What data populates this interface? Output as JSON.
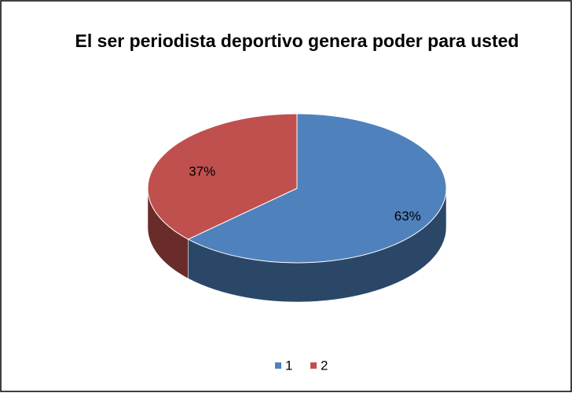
{
  "chart_data": {
    "type": "pie",
    "title": "El ser periodista deportivo genera poder para usted",
    "categories": [
      "1",
      "2"
    ],
    "values": [
      63,
      37
    ],
    "value_labels": [
      "63%",
      "37%"
    ],
    "colors": [
      "#4f81bd",
      "#c0504d"
    ],
    "legend": "bottom"
  }
}
